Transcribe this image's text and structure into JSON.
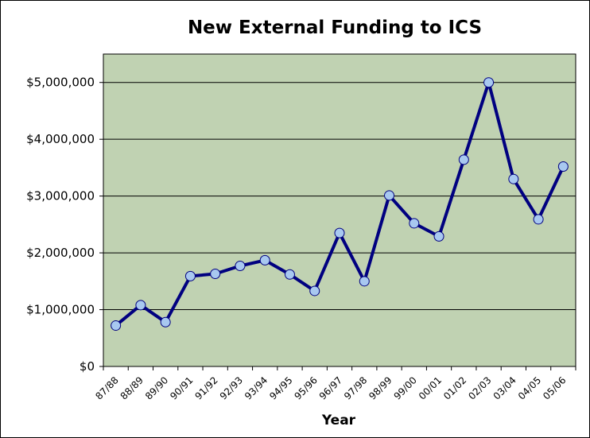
{
  "chart_data": {
    "type": "line",
    "title": "New External Funding to ICS",
    "xlabel": "Year",
    "ylabel": "",
    "categories": [
      "87/88",
      "88/89",
      "89/90",
      "90/91",
      "91/92",
      "92/93",
      "93/94",
      "94/95",
      "95/96",
      "96/97",
      "97/98",
      "98/99",
      "99/00",
      "00/01",
      "01/02",
      "02/03",
      "03/04",
      "04/05",
      "05/06"
    ],
    "series": [
      {
        "values": [
          720000,
          1080000,
          780000,
          1590000,
          1630000,
          1770000,
          1870000,
          1620000,
          1330000,
          2350000,
          1500000,
          3010000,
          2520000,
          2290000,
          3640000,
          5000000,
          3300000,
          2590000,
          3520000
        ]
      }
    ],
    "ylim": [
      0,
      5500000
    ],
    "yticks": [
      0,
      1000000,
      2000000,
      3000000,
      4000000,
      5000000
    ],
    "ytick_labels": [
      "$0",
      "$1,000,000",
      "$2,000,000",
      "$3,000,000",
      "$4,000,000",
      "$5,000,000"
    ],
    "grid": "horizontal",
    "colors": {
      "plot_background": "#c0d2b2",
      "line": "#000080",
      "marker_fill": "#a8c8f0",
      "gridline": "#000000"
    }
  }
}
